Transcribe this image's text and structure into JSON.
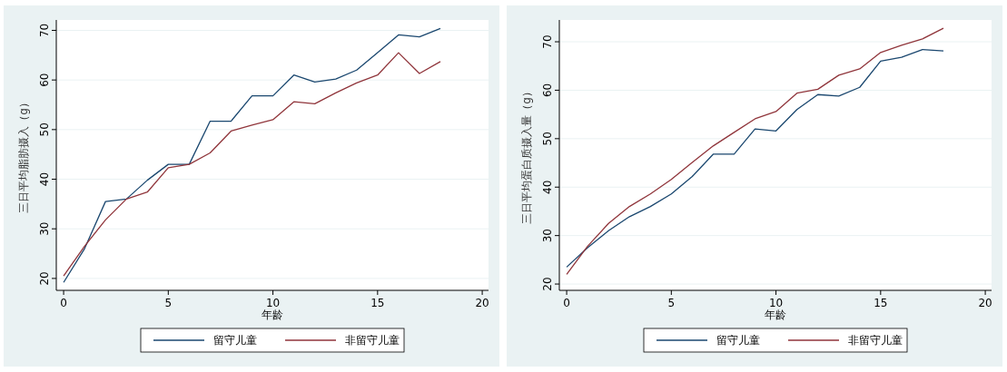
{
  "chart_data": [
    {
      "type": "line",
      "xlabel": "年龄",
      "ylabel": "三日平均脂肪摄入（g）",
      "x": [
        0,
        1,
        2,
        3,
        4,
        5,
        6,
        7,
        8,
        9,
        10,
        11,
        12,
        13,
        14,
        15,
        16,
        17,
        18
      ],
      "xlim": [
        -0.35,
        20.3
      ],
      "xticks": [
        0,
        5,
        10,
        15,
        20
      ],
      "ylim": [
        17.6,
        72.1
      ],
      "yticks": [
        20,
        30,
        40,
        50,
        60,
        70
      ],
      "grid": "y",
      "legend": "bottom",
      "series": [
        {
          "name": "留守儿童",
          "color": "#1a476f",
          "values": [
            19.2,
            26,
            35.5,
            36,
            39.8,
            43,
            43,
            51.7,
            51.7,
            56.8,
            56.8,
            61,
            59.6,
            60.2,
            62,
            65.5,
            69.1,
            68.7,
            70.4
          ]
        },
        {
          "name": "非留守儿童",
          "color": "#90353b",
          "values": [
            20.5,
            26.5,
            31.8,
            36,
            37.4,
            42.3,
            43,
            45.3,
            49.7,
            50.9,
            52,
            55.6,
            55.2,
            57.4,
            59.4,
            61,
            65.5,
            61.3,
            63.7
          ]
        }
      ]
    },
    {
      "type": "line",
      "xlabel": "年龄",
      "ylabel": "三日平均蛋白质摄入量（g）",
      "x": [
        0,
        1,
        2,
        3,
        4,
        5,
        6,
        7,
        8,
        9,
        10,
        11,
        12,
        13,
        14,
        15,
        16,
        17,
        18
      ],
      "xlim": [
        -0.35,
        20.3
      ],
      "xticks": [
        0,
        5,
        10,
        15,
        20
      ],
      "ylim": [
        18.7,
        74.5
      ],
      "yticks": [
        20,
        30,
        40,
        50,
        60,
        70
      ],
      "grid": "y",
      "legend": "bottom",
      "series": [
        {
          "name": "留守儿童",
          "color": "#1a476f",
          "values": [
            23.5,
            27.5,
            31,
            33.9,
            36,
            38.6,
            42.2,
            46.8,
            46.8,
            52,
            51.6,
            56,
            59.1,
            58.8,
            60.6,
            66,
            66.8,
            68.4,
            68.1
          ]
        },
        {
          "name": "非留守儿童",
          "color": "#90353b",
          "values": [
            22,
            27.8,
            32.5,
            36,
            38.6,
            41.6,
            45.1,
            48.5,
            51.3,
            54.1,
            55.6,
            59.4,
            60.2,
            63.1,
            64.4,
            67.8,
            69.3,
            70.6,
            72.8
          ]
        }
      ]
    }
  ]
}
